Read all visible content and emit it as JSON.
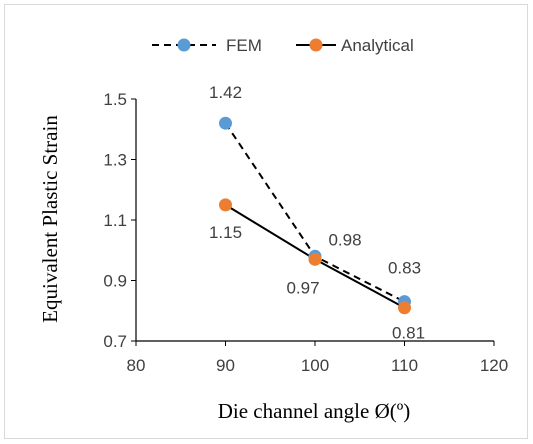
{
  "chart_data": {
    "type": "line",
    "xlabel": "Die channel angle Ø(º)",
    "ylabel": "Equivalent Plastic Strain",
    "xlim": [
      80,
      120
    ],
    "ylim": [
      0.7,
      1.5
    ],
    "xticks": [
      80,
      90,
      100,
      110,
      120
    ],
    "yticks": [
      0.7,
      0.9,
      1.1,
      1.3,
      1.5
    ],
    "x": [
      90,
      100,
      110
    ],
    "grid": false,
    "legend_position": "top",
    "series": [
      {
        "name": "FEM",
        "values": [
          1.42,
          0.98,
          0.83
        ],
        "labels": [
          "1.42",
          "0.98",
          "0.83"
        ],
        "color": "#5b9bd5",
        "line_color": "#000000",
        "line_style": "dashed"
      },
      {
        "name": "Analytical",
        "values": [
          1.15,
          0.97,
          0.81
        ],
        "labels": [
          "1.15",
          "0.97",
          "0.81"
        ],
        "color": "#ed7d31",
        "line_color": "#000000",
        "line_style": "solid"
      }
    ]
  }
}
